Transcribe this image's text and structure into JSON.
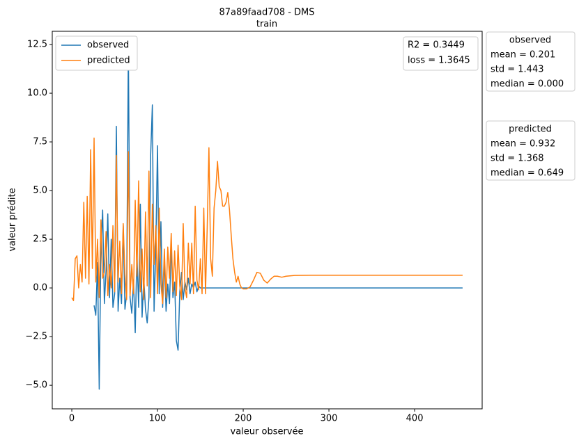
{
  "chart_data": {
    "type": "line",
    "title": "87a89faad708 - DMS",
    "subtitle": "train",
    "xlabel": "valeur observée",
    "ylabel": "valeur prédite",
    "x": [
      0,
      2,
      4,
      6,
      8,
      10,
      12,
      14,
      16,
      18,
      20,
      22,
      24,
      26,
      28,
      30,
      32,
      34,
      36,
      38,
      40,
      42,
      44,
      46,
      48,
      50,
      52,
      54,
      56,
      58,
      60,
      62,
      64,
      66,
      68,
      70,
      72,
      74,
      76,
      78,
      80,
      82,
      84,
      86,
      88,
      90,
      92,
      94,
      96,
      98,
      100,
      102,
      104,
      106,
      108,
      110,
      112,
      114,
      116,
      118,
      120,
      122,
      124,
      126,
      128,
      130,
      132,
      134,
      136,
      138,
      140,
      142,
      144,
      146,
      148,
      150,
      152,
      154,
      156,
      158,
      160,
      162,
      164,
      166,
      168,
      170,
      172,
      174,
      176,
      178,
      180,
      182,
      184,
      186,
      188,
      190,
      192,
      194,
      196,
      198,
      200,
      204,
      208,
      212,
      216,
      220,
      224,
      228,
      232,
      236,
      240,
      245,
      250,
      260,
      280,
      300,
      350,
      400,
      456
    ],
    "series": [
      {
        "name": "observed",
        "color": "#1f77b4",
        "values": [
          null,
          null,
          null,
          null,
          null,
          null,
          null,
          null,
          null,
          null,
          null,
          null,
          null,
          -0.9,
          -1.4,
          1.3,
          -5.2,
          2.1,
          4.0,
          -0.8,
          0.9,
          3.8,
          -0.5,
          2.5,
          -1.0,
          -0.3,
          8.3,
          -1.2,
          0.5,
          -0.8,
          3.2,
          -1.1,
          -0.3,
          12.4,
          -0.5,
          -1.3,
          0.4,
          -2.3,
          1.8,
          -1.0,
          4.3,
          -1.5,
          0.5,
          -1.1,
          -1.8,
          -0.5,
          6.8,
          9.4,
          -1.2,
          2.0,
          7.3,
          -0.3,
          3.4,
          -1.0,
          1.5,
          -1.2,
          0.2,
          -0.8,
          2.2,
          -0.5,
          0.3,
          -2.7,
          -3.2,
          -0.2,
          0.8,
          -0.6,
          0.3,
          -0.1,
          0.5,
          -0.3,
          0.2,
          0.0,
          0.3,
          -0.2,
          0.1,
          0,
          0,
          0,
          0,
          0,
          0,
          0,
          0,
          0,
          0,
          0,
          0,
          0,
          0,
          0,
          0,
          0,
          0,
          0,
          0,
          0,
          0,
          0,
          0,
          0,
          0,
          0,
          0,
          0,
          0,
          0,
          0,
          0,
          0,
          0,
          0,
          0,
          0,
          0,
          0,
          0,
          0,
          0,
          0
        ]
      },
      {
        "name": "predicted",
        "color": "#ff7f0e",
        "values": [
          -0.5,
          -0.65,
          1.5,
          1.65,
          0,
          1.2,
          0.3,
          4.4,
          0.5,
          4.7,
          0.2,
          7.1,
          1.0,
          7.7,
          0.3,
          2.5,
          -0.5,
          3.5,
          0.5,
          0.8,
          2.9,
          -0.4,
          1.2,
          0.0,
          3.2,
          -0.2,
          6.8,
          0.3,
          2.4,
          -0.3,
          3.3,
          0.7,
          -0.6,
          7.0,
          -0.4,
          1.2,
          -0.3,
          4.5,
          0.6,
          5.5,
          -0.2,
          2.0,
          -0.6,
          3.9,
          0.1,
          6.0,
          -0.5,
          4.3,
          1.2,
          3.2,
          -0.3,
          4.1,
          0.2,
          -0.8,
          2.0,
          -0.5,
          2.1,
          0.5,
          2.8,
          -0.2,
          1.9,
          -0.4,
          2.2,
          0.1,
          -0.6,
          3.3,
          0.0,
          -0.5,
          2.3,
          0.2,
          2.3,
          -0.3,
          4.2,
          0.4,
          -0.1,
          1.5,
          -0.3,
          4.1,
          -0.3,
          3.1,
          7.2,
          1.5,
          0.6,
          4.1,
          5.0,
          6.5,
          5.2,
          5.0,
          4.2,
          4.2,
          4.4,
          4.9,
          4.0,
          2.7,
          1.5,
          0.8,
          0.3,
          0.6,
          0.2,
          0.0,
          -0.05,
          -0.05,
          0.05,
          0.4,
          0.8,
          0.75,
          0.4,
          0.25,
          0.45,
          0.6,
          0.6,
          0.55,
          0.6,
          0.64,
          0.649,
          0.649,
          0.649,
          0.649,
          0.649
        ]
      }
    ],
    "xlim": [
      -22.8,
      478.8
    ],
    "xticks": [
      0,
      100,
      200,
      300,
      400
    ],
    "ylim": [
      -6.21,
      13.18
    ],
    "yticks": [
      {
        "value": -5,
        "label": "−5.0"
      },
      {
        "value": -2.5,
        "label": "−2.5"
      },
      {
        "value": 0,
        "label": "0.0"
      },
      {
        "value": 2.5,
        "label": "2.5"
      },
      {
        "value": 5,
        "label": "5.0"
      },
      {
        "value": 7.5,
        "label": "7.5"
      },
      {
        "value": 10,
        "label": "10.0"
      },
      {
        "value": 12.5,
        "label": "12.5"
      }
    ],
    "legend": "upper left",
    "metrics": [
      "R2 = 0.3449",
      "loss = 1.3645"
    ],
    "stats_boxes": [
      {
        "title": "observed",
        "lines": [
          "mean = 0.201",
          "std = 1.443",
          "median = 0.000"
        ]
      },
      {
        "title": "predicted",
        "lines": [
          "mean = 0.932",
          "std = 1.368",
          "median = 0.649"
        ]
      }
    ]
  }
}
